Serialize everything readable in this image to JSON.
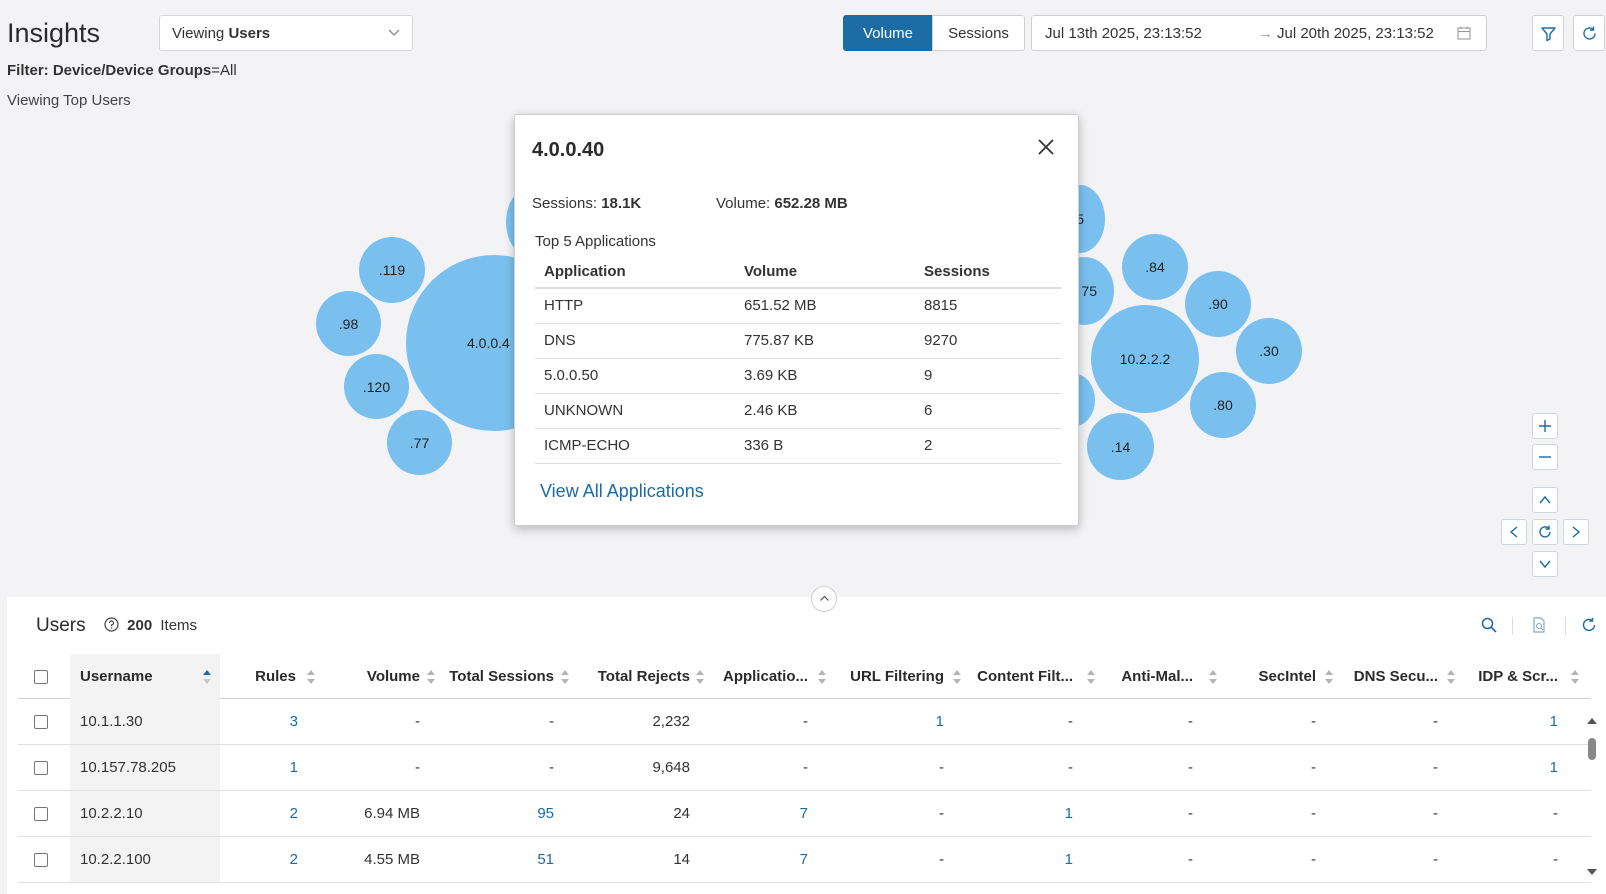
{
  "header": {
    "title": "Insights",
    "view_select_prefix": "Viewing",
    "view_select_value": "Users",
    "filter_label": "Filter: Device/Device Groups",
    "filter_value": "=All",
    "subtitle": "Viewing Top Users"
  },
  "toolbar": {
    "volume_label": "Volume",
    "sessions_label": "Sessions",
    "date_from": "Jul 13th 2025, 23:13:52",
    "date_arrow": "→",
    "date_to": "Jul 20th 2025, 23:13:52"
  },
  "bubbles": {
    "b119": ".119",
    "b98": ".98",
    "b120": ".120",
    "b77": ".77",
    "b4040": "4.0.0.4",
    "b84": ".84",
    "b90": ".90",
    "b75": "75",
    "b5": "5",
    "b10222": "10.2.2.2",
    "b30": ".30",
    "b80": ".80",
    "b14": ".14"
  },
  "popup": {
    "title": "4.0.0.40",
    "sessions_label": "Sessions:",
    "sessions_value": "18.1K",
    "volume_label": "Volume:",
    "volume_value": "652.28 MB",
    "top5_label": "Top 5 Applications",
    "columns": [
      "Application",
      "Volume",
      "Sessions"
    ],
    "rows": [
      [
        "HTTP",
        "651.52 MB",
        "8815"
      ],
      [
        "DNS",
        "775.87 KB",
        "9270"
      ],
      [
        "5.0.0.50",
        "3.69 KB",
        "9"
      ],
      [
        "UNKNOWN",
        "2.46 KB",
        "6"
      ],
      [
        "ICMP-ECHO",
        "336 B",
        "2"
      ]
    ],
    "view_all": "View All Applications"
  },
  "panel": {
    "title": "Users",
    "count": "200",
    "count_suffix": "Items",
    "columns": [
      "Username",
      "Rules",
      "Volume",
      "Total Sessions",
      "Total Rejects",
      "Applicatio...",
      "URL Filtering",
      "Content Filt...",
      "Anti-Mal...",
      "SecIntel",
      "DNS Secu...",
      "IDP & Scr..."
    ],
    "rows": [
      [
        "10.1.1.30",
        "3",
        "-",
        "-",
        "2,232",
        "-",
        "1",
        "-",
        "-",
        "-",
        "-",
        "1"
      ],
      [
        "10.157.78.205",
        "1",
        "-",
        "-",
        "9,648",
        "-",
        "-",
        "-",
        "-",
        "-",
        "-",
        "1"
      ],
      [
        "10.2.2.10",
        "2",
        "6.94 MB",
        "95",
        "24",
        "7",
        "-",
        "1",
        "-",
        "-",
        "-",
        "-"
      ],
      [
        "10.2.2.100",
        "2",
        "4.55 MB",
        "51",
        "14",
        "7",
        "-",
        "1",
        "-",
        "-",
        "-",
        "-"
      ]
    ]
  },
  "colors": {
    "accent": "#1b6ba5",
    "bubble": "#7ac0ef"
  }
}
